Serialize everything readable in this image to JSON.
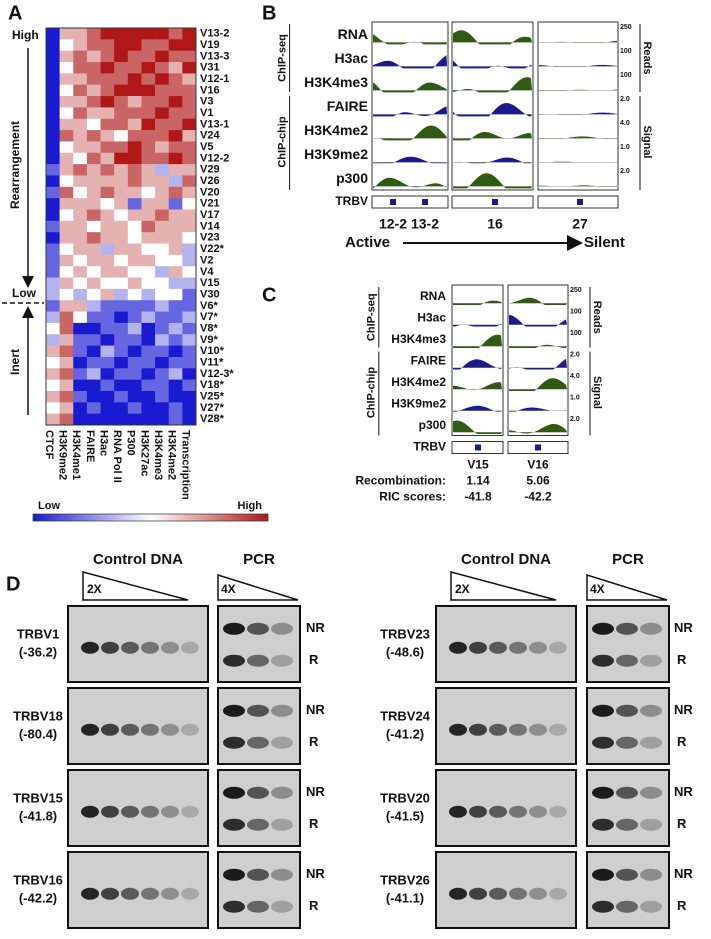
{
  "panel_a": {
    "label": "A",
    "high": "High",
    "low": "Low",
    "rearrangement": "Rearrangement",
    "inert": "Inert",
    "rows": [
      "V13-2",
      "V19",
      "V13-3",
      "V31",
      "V12-1",
      "V16",
      "V3",
      "V1",
      "V13-1",
      "V24",
      "V5",
      "V12-2",
      "V29",
      "V26",
      "V20",
      "V21",
      "V17",
      "V14",
      "V23",
      "V22*",
      "V2",
      "V4",
      "V15",
      "V30",
      "V6*",
      "V7*",
      "V8*",
      "V9*",
      "V10*",
      "V11*",
      "V12-3*",
      "V18*",
      "V25*",
      "V27*",
      "V28*"
    ],
    "columns": [
      "CTCF",
      "H3K9me2",
      "H3K4me1",
      "FAIRE",
      "H3ac",
      "RNA Pol II",
      "P300",
      "H3K27ac",
      "H3K4me3",
      "H3K4me2",
      "Transcription"
    ],
    "values": [
      [
        -3,
        1,
        1,
        2,
        3,
        3,
        3,
        3,
        3,
        2,
        3
      ],
      [
        -3,
        0,
        1,
        2,
        2,
        3,
        3,
        2,
        2,
        3,
        3
      ],
      [
        -3,
        1,
        2,
        1,
        2,
        3,
        2,
        2,
        3,
        2,
        2
      ],
      [
        -3,
        0,
        2,
        2,
        3,
        2,
        2,
        3,
        2,
        1,
        3
      ],
      [
        -3,
        1,
        1,
        2,
        2,
        2,
        3,
        2,
        3,
        2,
        1
      ],
      [
        -3,
        0,
        2,
        1,
        2,
        3,
        3,
        3,
        2,
        2,
        2
      ],
      [
        -3,
        1,
        1,
        2,
        3,
        2,
        1,
        2,
        2,
        3,
        2
      ],
      [
        -3,
        0,
        2,
        1,
        1,
        2,
        2,
        2,
        3,
        2,
        2
      ],
      [
        -3,
        1,
        1,
        0,
        2,
        2,
        1,
        3,
        2,
        2,
        3
      ],
      [
        -3,
        2,
        1,
        2,
        1,
        0,
        2,
        2,
        2,
        3,
        1
      ],
      [
        -3,
        0,
        1,
        1,
        2,
        2,
        3,
        2,
        1,
        2,
        2
      ],
      [
        -3,
        1,
        0,
        2,
        1,
        3,
        3,
        2,
        2,
        3,
        2
      ],
      [
        -2,
        1,
        2,
        1,
        2,
        1,
        2,
        1,
        -1,
        1,
        1
      ],
      [
        -3,
        0,
        1,
        1,
        1,
        1,
        2,
        1,
        1,
        -1,
        2
      ],
      [
        -2,
        2,
        0,
        1,
        2,
        1,
        1,
        0,
        1,
        2,
        1
      ],
      [
        -3,
        1,
        1,
        1,
        0,
        1,
        -2,
        1,
        1,
        -2,
        0
      ],
      [
        -3,
        0,
        1,
        2,
        1,
        0,
        1,
        1,
        2,
        1,
        1
      ],
      [
        -2,
        1,
        1,
        0,
        1,
        1,
        0,
        2,
        1,
        1,
        1
      ],
      [
        -3,
        1,
        1,
        2,
        1,
        1,
        0,
        1,
        1,
        1,
        0
      ],
      [
        -2,
        0,
        1,
        1,
        -1,
        1,
        1,
        0,
        0,
        1,
        -1
      ],
      [
        -2,
        1,
        0,
        1,
        1,
        0,
        1,
        1,
        0,
        0,
        -1
      ],
      [
        -2,
        0,
        1,
        0,
        1,
        1,
        0,
        0,
        -1,
        1,
        0
      ],
      [
        -1,
        1,
        0,
        1,
        0,
        0,
        1,
        0,
        0,
        -1,
        -1
      ],
      [
        -1,
        0,
        -1,
        0,
        1,
        -1,
        0,
        -1,
        0,
        0,
        -2
      ],
      [
        -2,
        1,
        1,
        -1,
        -2,
        -2,
        -2,
        -2,
        -1,
        -2,
        -2
      ],
      [
        -1,
        2,
        0,
        -2,
        -2,
        -3,
        -2,
        -1,
        -2,
        -2,
        -1
      ],
      [
        0,
        2,
        -3,
        -3,
        -2,
        -2,
        -1,
        -3,
        -2,
        -1,
        -2
      ],
      [
        -1,
        1,
        -2,
        -2,
        -3,
        -2,
        -2,
        -3,
        -1,
        -2,
        -1
      ],
      [
        1,
        2,
        -2,
        -3,
        -1,
        -2,
        -3,
        -2,
        -2,
        -3,
        -2
      ],
      [
        0,
        1,
        -3,
        -2,
        -2,
        -3,
        -2,
        -2,
        -3,
        -2,
        -2
      ],
      [
        1,
        2,
        -2,
        -1,
        -3,
        -2,
        -2,
        -3,
        -2,
        -1,
        -3
      ],
      [
        0,
        1,
        -3,
        -3,
        -2,
        -3,
        -3,
        -2,
        -2,
        -3,
        -2
      ],
      [
        1,
        2,
        -2,
        -3,
        -3,
        -2,
        -3,
        -3,
        -2,
        -3,
        -3
      ],
      [
        0,
        1,
        -3,
        -2,
        -3,
        -3,
        -2,
        -3,
        -3,
        -2,
        -3
      ],
      [
        1,
        2,
        -3,
        -3,
        -3,
        -3,
        -3,
        -3,
        -3,
        -2,
        -3
      ]
    ],
    "range": [
      -3,
      3
    ],
    "colorbar_low": "Low",
    "colorbar_high": "High"
  },
  "panel_b": {
    "label": "B",
    "group_seq": "ChIP-seq",
    "group_chip": "ChIP-chip",
    "tracks": [
      "RNA",
      "H3ac",
      "H3K4me3",
      "FAIRE",
      "H3K4me2",
      "H3K9me2",
      "p300"
    ],
    "scales": [
      "250",
      "100",
      "100",
      "2.0",
      "4.0",
      "1.0",
      "2.0"
    ],
    "reads": "Reads",
    "signal": "Signal",
    "locus": "TRBV",
    "genes": [
      "12-2",
      "13-2",
      "16",
      "27"
    ],
    "active": "Active",
    "silent": "Silent"
  },
  "panel_c": {
    "label": "C",
    "group_seq": "ChIP-seq",
    "group_chip": "ChIP-chip",
    "tracks": [
      "RNA",
      "H3ac",
      "H3K4me3",
      "FAIRE",
      "H3K4me2",
      "H3K9me2",
      "p300"
    ],
    "scales": [
      "250",
      "100",
      "100",
      "2.0",
      "4.0",
      "1.0",
      "2.0"
    ],
    "reads": "Reads",
    "signal": "Signal",
    "locus": "TRBV",
    "genes": [
      "V15",
      "V16"
    ],
    "recombination_label": "Recombination:",
    "recombination": [
      1.14,
      5.06
    ],
    "ric_label": "RIC scores:",
    "ric": [
      -41.8,
      -42.2
    ]
  },
  "panel_d": {
    "label": "D",
    "control": "Control DNA",
    "pcr": "PCR",
    "control_dilution": "2X",
    "pcr_dilution": "4X",
    "nr": "NR",
    "r": "R",
    "left": [
      {
        "gene": "TRBV1",
        "score": "(-36.2)"
      },
      {
        "gene": "TRBV18",
        "score": "(-80.4)"
      },
      {
        "gene": "TRBV15",
        "score": "(-41.8)"
      },
      {
        "gene": "TRBV16",
        "score": "(-42.2)"
      }
    ],
    "right": [
      {
        "gene": "TRBV23",
        "score": "(-48.6)"
      },
      {
        "gene": "TRBV24",
        "score": "(-41.2)"
      },
      {
        "gene": "TRBV20",
        "score": "(-41.5)"
      },
      {
        "gene": "TRBV26",
        "score": "(-41.1)"
      }
    ]
  }
}
